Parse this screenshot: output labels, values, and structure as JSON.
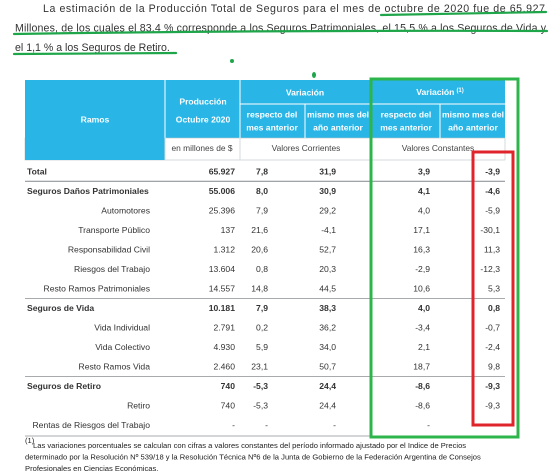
{
  "paragraph_lines": [
    "La estimación de la Producción Total de Seguros para el mes de octubre de 2020 fue de 65.927",
    "Millones, de los cuales el 83,4 % corresponde a los Seguros Patrimoniales, el 15,5 % a los Seguros de Vida y",
    "el 1,1 % a los Seguros de Retiro."
  ],
  "table": {
    "header": {
      "ramos": "Ramos",
      "produccion": [
        "Producción",
        "Octubre 2020"
      ],
      "variacion": "Variación",
      "variacion_constante": {
        "text": "Variación",
        "note": "(1)"
      },
      "subcolumns": [
        [
          "respecto del",
          "mes anterior"
        ],
        [
          "mismo mes del",
          "año anterior"
        ],
        [
          "respecto del",
          "mes anterior"
        ],
        [
          "mismo mes del",
          "año anterior"
        ]
      ],
      "units": [
        "en millones de $",
        "Valores Corrientes",
        "Valores Constantes"
      ]
    },
    "rows": [
      {
        "label": "Total",
        "group": true,
        "cells": [
          "65.927",
          "7,8",
          "31,9",
          "3,9",
          "-3,9"
        ]
      },
      {
        "label": "Seguros Daños Patrimoniales",
        "group": true,
        "cells": [
          "55.006",
          "8,0",
          "30,9",
          "4,1",
          "-4,6"
        ]
      },
      {
        "label": "Automotores",
        "group": false,
        "cells": [
          "25.396",
          "7,9",
          "29,2",
          "4,0",
          "-5,9"
        ]
      },
      {
        "label": "Transporte Público",
        "group": false,
        "cells": [
          "137",
          "21,6",
          "-4,1",
          "17,1",
          "-30,1"
        ]
      },
      {
        "label": "Responsabilidad Civil",
        "group": false,
        "cells": [
          "1.312",
          "20,6",
          "52,7",
          "16,3",
          "11,3"
        ]
      },
      {
        "label": "Riesgos del Trabajo",
        "group": false,
        "cells": [
          "13.604",
          "0,8",
          "20,3",
          "-2,9",
          "-12,3"
        ]
      },
      {
        "label": "Resto Ramos Patrimoniales",
        "group": false,
        "cells": [
          "14.557",
          "14,8",
          "44,5",
          "10,6",
          "5,3"
        ]
      },
      {
        "label": "Seguros de Vida",
        "group": true,
        "cells": [
          "10.181",
          "7,9",
          "38,3",
          "4,0",
          "0,8"
        ]
      },
      {
        "label": "Vida Individual",
        "group": false,
        "cells": [
          "2.791",
          "0,2",
          "36,2",
          "-3,4",
          "-0,7"
        ]
      },
      {
        "label": "Vida Colectivo",
        "group": false,
        "cells": [
          "4.930",
          "5,9",
          "34,0",
          "2,1",
          "-2,4"
        ]
      },
      {
        "label": "Resto Ramos Vida",
        "group": false,
        "cells": [
          "2.460",
          "23,1",
          "50,7",
          "18,7",
          "9,8"
        ]
      },
      {
        "label": "Seguros de Retiro",
        "group": true,
        "cells": [
          "740",
          "-5,3",
          "24,4",
          "-8,6",
          "-9,3"
        ]
      },
      {
        "label": "Retiro",
        "group": false,
        "cells": [
          "740",
          "-5,3",
          "24,4",
          "-8,6",
          "-9,3"
        ]
      },
      {
        "label": "Rentas de Riesgos del Trabajo",
        "group": false,
        "cells": [
          "-",
          "-",
          "-",
          "-",
          "-"
        ]
      }
    ]
  },
  "footnote": {
    "marker": "(1)",
    "lines": [
      "Las variaciones porcentuales se calculan con cifras a valores constantes del período informado ajustado por el Indice de Precios",
      "determinado por la Resolución Nº 539/18 y la Resolución Técnica Nº6 de la Junta de Gobierno de la Federación Argentina de Consejos",
      "Profesionales en Ciencias Económicas."
    ]
  }
}
